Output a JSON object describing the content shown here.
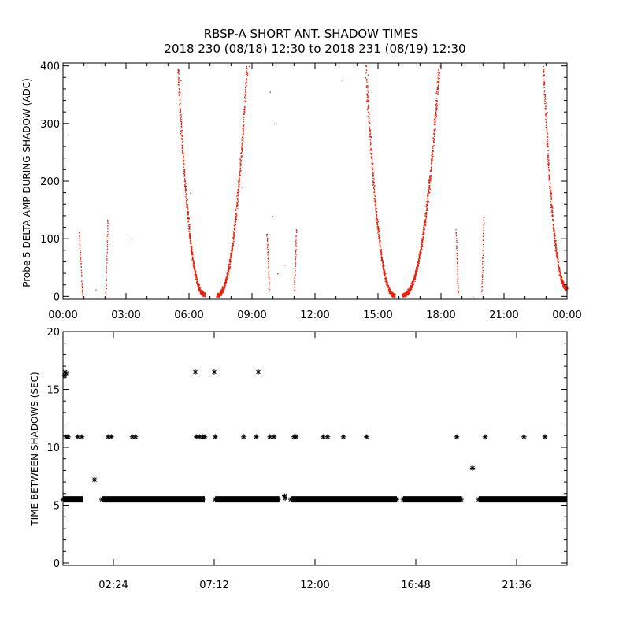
{
  "figure": {
    "title_line1": "RBSP-A SHORT ANT. SHADOW TIMES",
    "title_line2": "2018 230 (08/18) 12:30 to 2018 231 (08/19) 12:30"
  },
  "colors": {
    "series_top": "#e8200c",
    "series_bottom": "#000000",
    "axes": "#000000"
  },
  "chart_data": [
    {
      "type": "scatter",
      "ylabel": "Probe 5 DELTA AMP DURING SHADOW (ADC)",
      "xlabel": "",
      "x_unit": "hours",
      "xlim": [
        0,
        24
      ],
      "ylim": [
        -5,
        405
      ],
      "x_tick_labels": [
        "00:00",
        "03:00",
        "06:00",
        "09:00",
        "12:00",
        "15:00",
        "18:00",
        "21:00",
        "00:00"
      ],
      "y_tick_labels": [
        "0",
        "100",
        "200",
        "300",
        "400"
      ],
      "series": [
        {
          "marker": "dot",
          "segments": [
            {
              "x_range": [
                0.75,
                0.92
              ],
              "y_range": [
                112,
                0
              ],
              "shape": "linear"
            },
            {
              "x_range": [
                2.02,
                2.12
              ],
              "y_range": [
                0,
                135
              ],
              "shape": "linear"
            },
            {
              "x_range": [
                5.45,
                6.75
              ],
              "y_range": [
                400,
                3
              ],
              "shape": "decay"
            },
            {
              "x_range": [
                7.3,
                8.75
              ],
              "y_range": [
                2,
                400
              ],
              "shape": "rise"
            },
            {
              "x_range": [
                9.7,
                9.8
              ],
              "y_range": [
                110,
                10
              ],
              "shape": "linear"
            },
            {
              "x_range": [
                11.0,
                11.1
              ],
              "y_range": [
                10,
                118
              ],
              "shape": "linear"
            },
            {
              "x_range": [
                14.4,
                15.8
              ],
              "y_range": [
                400,
                2
              ],
              "shape": "decay"
            },
            {
              "x_range": [
                16.15,
                17.9
              ],
              "y_range": [
                3,
                400
              ],
              "shape": "rise"
            },
            {
              "x_range": [
                18.7,
                18.8
              ],
              "y_range": [
                115,
                5
              ],
              "shape": "linear"
            },
            {
              "x_range": [
                19.93,
                20.02
              ],
              "y_range": [
                5,
                140
              ],
              "shape": "linear"
            },
            {
              "x_range": [
                22.85,
                24.0
              ],
              "y_range": [
                400,
                15
              ],
              "shape": "decay"
            }
          ],
          "isolated_points": [
            [
              1.55,
              12
            ],
            [
              3.25,
              100
            ],
            [
              8.85,
              400
            ],
            [
              9.85,
              355
            ],
            [
              10.05,
              300
            ],
            [
              9.95,
              140
            ],
            [
              10.55,
              55
            ],
            [
              10.2,
              40
            ],
            [
              13.3,
              375
            ],
            [
              17.95,
              400
            ],
            [
              19.5,
              0
            ],
            [
              14.5,
              385
            ],
            [
              5.6,
              375
            ],
            [
              6.05,
              180
            ],
            [
              8.5,
              190
            ],
            [
              22.9,
              385
            ],
            [
              23.05,
              320
            ]
          ]
        }
      ]
    },
    {
      "type": "scatter",
      "ylabel": "TIME BETWEEN SHADOWS (SEC)",
      "xlabel": "",
      "x_unit": "hours",
      "xlim": [
        0,
        24
      ],
      "ylim": [
        0,
        20
      ],
      "x_tick_labels": [
        "02:24",
        "07:12",
        "12:00",
        "16:48",
        "21:36"
      ],
      "y_tick_labels": [
        "0",
        "5",
        "10",
        "15",
        "20"
      ],
      "series": [
        {
          "marker": "asterisk",
          "baseline_value": 5.5,
          "baseline_ranges": [
            [
              0.0,
              0.95
            ],
            [
              1.85,
              6.75
            ],
            [
              7.25,
              10.3
            ],
            [
              10.85,
              15.9
            ],
            [
              16.2,
              19.0
            ],
            [
              19.8,
              24.0
            ]
          ],
          "points": [
            [
              0.1,
              16.5
            ],
            [
              0.15,
              16.4
            ],
            [
              0.08,
              16.2
            ],
            [
              6.3,
              16.5
            ],
            [
              7.2,
              16.5
            ],
            [
              9.3,
              16.5
            ],
            [
              0.15,
              10.9
            ],
            [
              0.25,
              10.9
            ],
            [
              0.7,
              10.9
            ],
            [
              0.9,
              10.9
            ],
            [
              2.15,
              10.9
            ],
            [
              2.3,
              10.9
            ],
            [
              3.3,
              10.9
            ],
            [
              3.45,
              10.9
            ],
            [
              6.35,
              10.9
            ],
            [
              6.5,
              10.9
            ],
            [
              6.65,
              10.9
            ],
            [
              6.75,
              10.9
            ],
            [
              7.25,
              10.9
            ],
            [
              8.6,
              10.9
            ],
            [
              9.2,
              10.9
            ],
            [
              9.85,
              10.9
            ],
            [
              10.05,
              10.9
            ],
            [
              11.0,
              10.9
            ],
            [
              11.1,
              10.9
            ],
            [
              12.4,
              10.9
            ],
            [
              12.6,
              10.9
            ],
            [
              13.35,
              10.9
            ],
            [
              14.45,
              10.9
            ],
            [
              18.75,
              10.9
            ],
            [
              20.1,
              10.9
            ],
            [
              21.95,
              10.9
            ],
            [
              22.95,
              10.9
            ],
            [
              1.5,
              7.2
            ],
            [
              19.5,
              8.2
            ],
            [
              10.55,
              5.8
            ],
            [
              10.58,
              5.6
            ]
          ]
        }
      ]
    }
  ]
}
